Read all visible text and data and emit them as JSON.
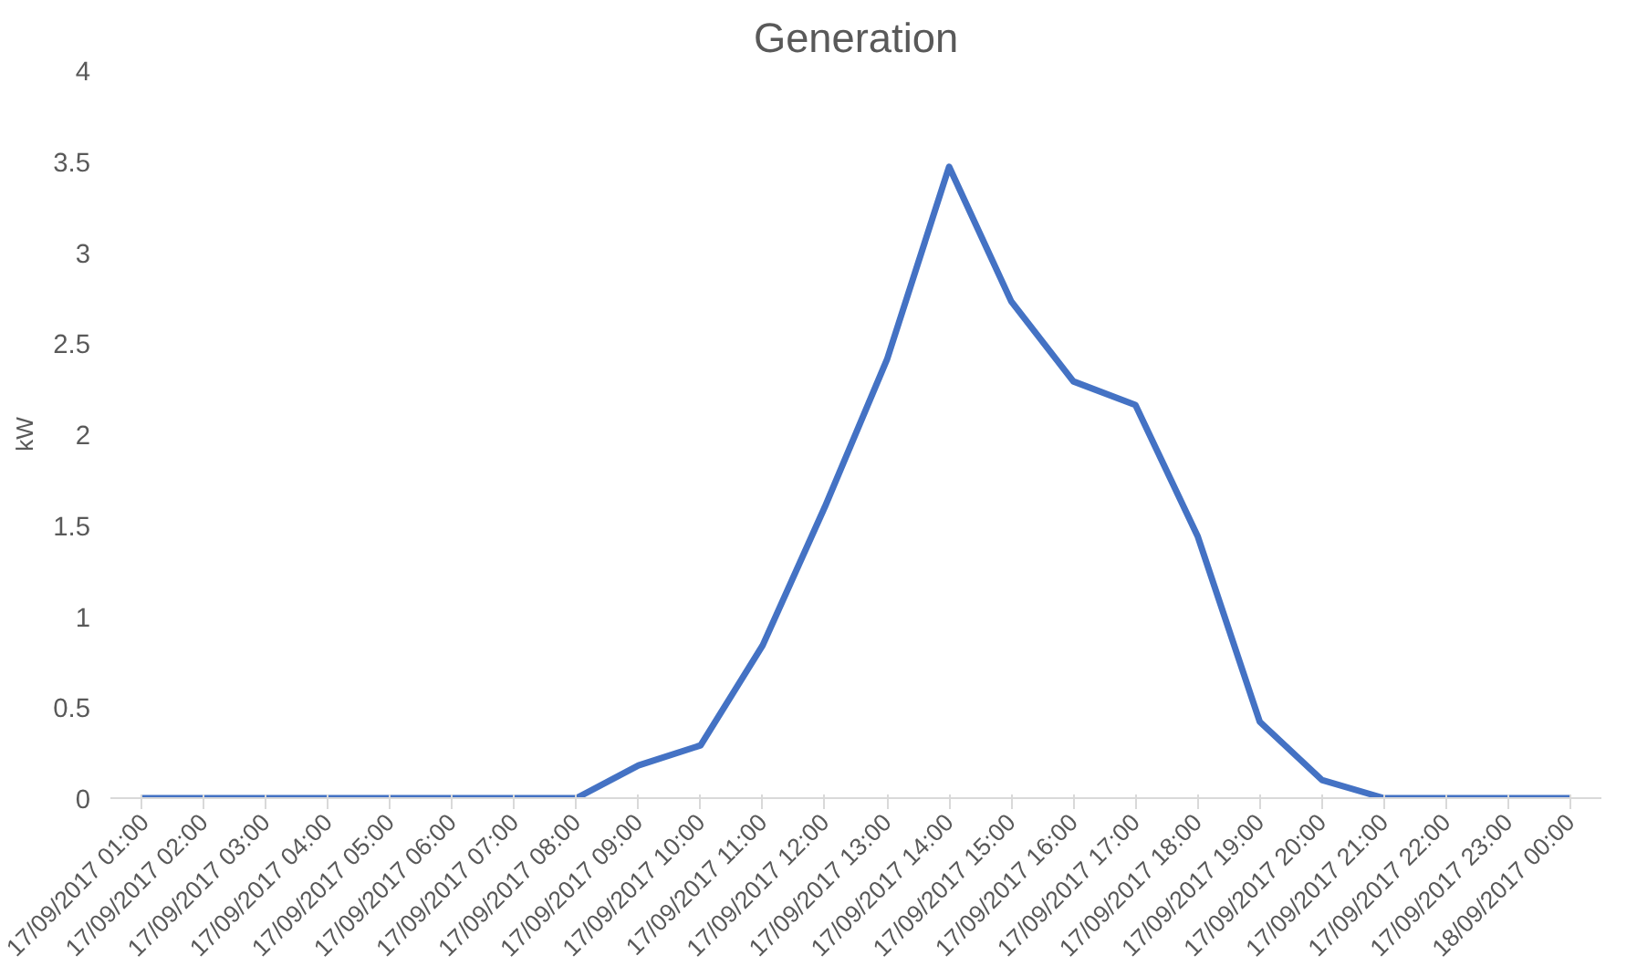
{
  "chart_data": {
    "type": "line",
    "title": "Generation",
    "ylabel": "kW",
    "categories": [
      "17/09/2017 01:00",
      "17/09/2017 02:00",
      "17/09/2017 03:00",
      "17/09/2017 04:00",
      "17/09/2017 05:00",
      "17/09/2017 06:00",
      "17/09/2017 07:00",
      "17/09/2017 08:00",
      "17/09/2017 09:00",
      "17/09/2017 10:00",
      "17/09/2017 11:00",
      "17/09/2017 12:00",
      "17/09/2017 13:00",
      "17/09/2017 14:00",
      "17/09/2017 15:00",
      "17/09/2017 16:00",
      "17/09/2017 17:00",
      "17/09/2017 18:00",
      "17/09/2017 19:00",
      "17/09/2017 20:00",
      "17/09/2017 21:00",
      "17/09/2017 22:00",
      "17/09/2017 23:00",
      "18/09/2017 00:00"
    ],
    "series": [
      {
        "color": "#4472c4",
        "values": [
          0,
          0,
          0,
          0,
          0,
          0,
          0,
          0,
          0.18,
          0.29,
          0.84,
          1.6,
          2.41,
          3.47,
          2.73,
          2.29,
          2.16,
          1.44,
          0.42,
          0.1,
          0,
          0,
          0,
          0
        ]
      }
    ],
    "ylim": [
      0,
      4
    ],
    "yticks": [
      0,
      0.5,
      1,
      1.5,
      2,
      2.5,
      3,
      3.5,
      4
    ],
    "grid": false,
    "marker": "none",
    "line_style": "solid"
  }
}
